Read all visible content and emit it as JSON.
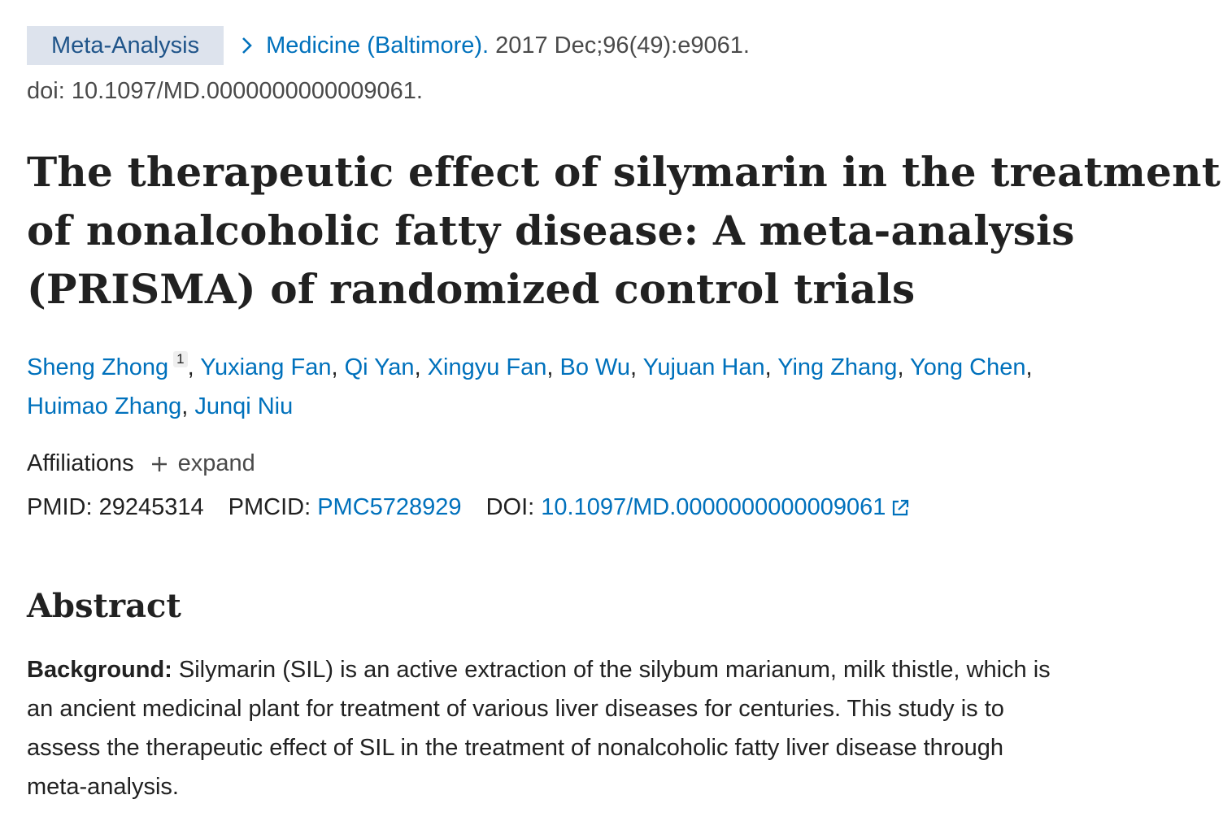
{
  "citation": {
    "badge": "Meta-Analysis",
    "journal": "Medicine (Baltimore).",
    "issue": "2017 Dec;96(49):e9061.",
    "doi_line": "doi: 10.1097/MD.0000000000009061."
  },
  "title_lines": [
    "The therapeutic effect of silymarin in the treatment",
    "of nonalcoholic fatty disease: A meta-analysis",
    "(PRISMA) of randomized control trials"
  ],
  "authors": {
    "first": "Sheng Zhong",
    "first_sup": "1",
    "list": [
      "Yuxiang Fan",
      "Qi Yan",
      "Xingyu Fan",
      "Bo Wu",
      "Yujuan Han",
      "Ying Zhang",
      "Yong Chen",
      "Huimao Zhang",
      "Junqi Niu"
    ]
  },
  "affiliations": {
    "label": "Affiliations",
    "expand": "expand"
  },
  "ids": {
    "pmid_label": "PMID:",
    "pmid": "29245314",
    "pmcid_label": "PMCID:",
    "pmcid": "PMC5728929",
    "doi_label": "DOI:",
    "doi": "10.1097/MD.0000000000009061"
  },
  "abstract": {
    "heading": "Abstract",
    "background_label": "Background:",
    "lines": [
      " Silymarin (SIL) is an active extraction of the silybum marianum, milk thistle, which is",
      "an ancient medicinal plant for treatment of various liver diseases for centuries. This study is to",
      "assess the therapeutic effect of SIL in the treatment of nonalcoholic fatty liver disease through",
      "meta-analysis."
    ]
  },
  "colors": {
    "link": "#0071bc",
    "badge_bg": "#dde3ed",
    "badge_text": "#20558a",
    "text": "#212121",
    "muted": "#4a4a4a"
  }
}
